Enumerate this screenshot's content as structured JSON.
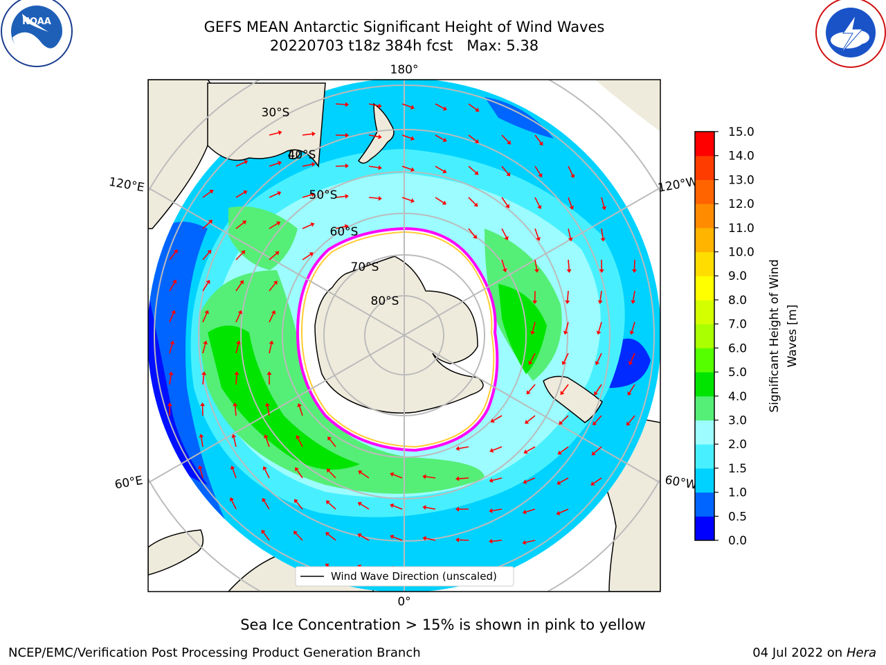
{
  "title_line1": "GEFS MEAN Antarctic Significant Height of Wind Waves",
  "title_line2": "20220703 t18z 384h fcst   Max: 5.38",
  "logos": {
    "noaa": {
      "text": "NOAA",
      "ring_top": "NATIONAL OCEANIC AND ATMOSPHERIC ADMINISTRATION",
      "ring_bottom": "U.S. DEPARTMENT OF COMMERCE"
    },
    "nws": {
      "ring_text": "NATIONAL WEATHER SERVICE"
    }
  },
  "map": {
    "projection": "south polar stereographic",
    "longitude_labels": {
      "top": "180°",
      "bottom": "0°",
      "left_upper": "120°E",
      "left_lower": "60°E",
      "right_upper": "120°W",
      "right_lower": "60°W"
    },
    "latitude_labels": [
      "30°S",
      "40°S",
      "50°S",
      "60°S",
      "70°S",
      "80°S"
    ],
    "legend": "Wind Wave Direction (unscaled)"
  },
  "colorbar": {
    "label_line1": "Significant Height of Wind",
    "label_line2": "Waves [m]",
    "ticks": [
      "0.0",
      "0.5",
      "1.0",
      "1.5",
      "2.0",
      "3.0",
      "4.0",
      "5.0",
      "6.0",
      "7.0",
      "8.0",
      "9.0",
      "10.0",
      "11.0",
      "12.0",
      "13.0",
      "14.0",
      "15.0"
    ],
    "band_colors": [
      "#0000ff",
      "#0064ff",
      "#00d2ff",
      "#48f0ff",
      "#9cfcff",
      "#55ee77",
      "#00e400",
      "#55ff00",
      "#aaff00",
      "#d4ff00",
      "#ffff00",
      "#ffdd00",
      "#ffb400",
      "#ff8c00",
      "#ff6400",
      "#ff3c00",
      "#ff0000"
    ]
  },
  "colors": {
    "land": "#efebdc",
    "sea_ice": "#ffffff",
    "ice_edge": "#ff00ff",
    "arrows": "#ff0000",
    "grid": "#bbbbbb"
  },
  "caption": "Sea Ice Concentration > 15% is shown in pink to yellow",
  "footer_left": "NCEP/EMC/Verification Post Processing Product Generation Branch",
  "footer_right_date": "04 Jul 2022 on",
  "footer_right_host": "Hera"
}
